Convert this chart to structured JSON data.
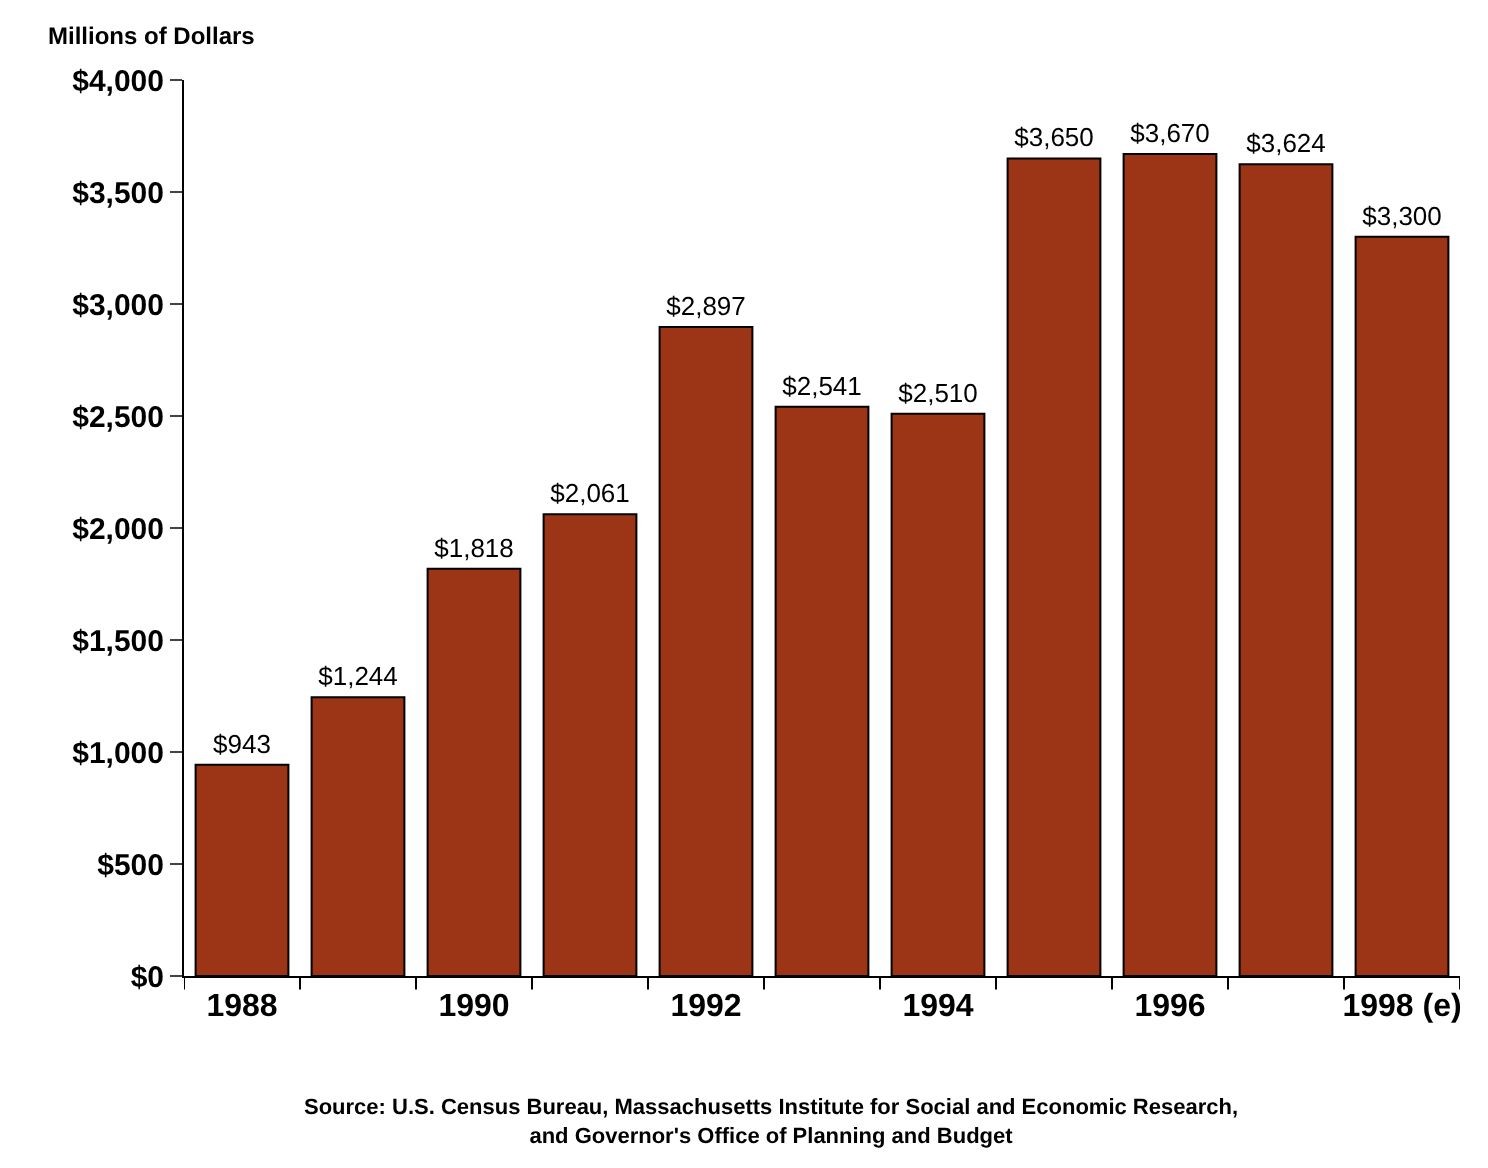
{
  "chart_data": {
    "type": "bar",
    "ylabel": "Millions of Dollars",
    "categories": [
      "1988",
      null,
      "1990",
      null,
      "1992",
      null,
      "1994",
      null,
      "1996",
      null,
      "1998 (e)"
    ],
    "values": [
      943,
      1244,
      1818,
      2061,
      2897,
      2541,
      2510,
      3650,
      3670,
      3624,
      3300
    ],
    "value_labels": [
      "$943",
      "$1,244",
      "$1,818",
      "$2,061",
      "$2,897",
      "$2,541",
      "$2,510",
      "$3,650",
      "$3,670",
      "$3,624",
      "$3,300"
    ],
    "color": "#9c3416",
    "ylim": [
      0,
      4000
    ],
    "yticks": [
      {
        "value": 0,
        "label": "$0"
      },
      {
        "value": 500,
        "label": "$500"
      },
      {
        "value": 1000,
        "label": "$1,000"
      },
      {
        "value": 1500,
        "label": "$1,500"
      },
      {
        "value": 2000,
        "label": "$2,000"
      },
      {
        "value": 2500,
        "label": "$2,500"
      },
      {
        "value": 3000,
        "label": "$3,000"
      },
      {
        "value": 3500,
        "label": "$3,500"
      },
      {
        "value": 4000,
        "label": "$4,000"
      }
    ],
    "grid": false,
    "annotations": [
      "Source: U.S. Census Bureau, Massachusetts Institute for Social and Economic Research,\nand Governor's Office of Planning and Budget"
    ]
  }
}
